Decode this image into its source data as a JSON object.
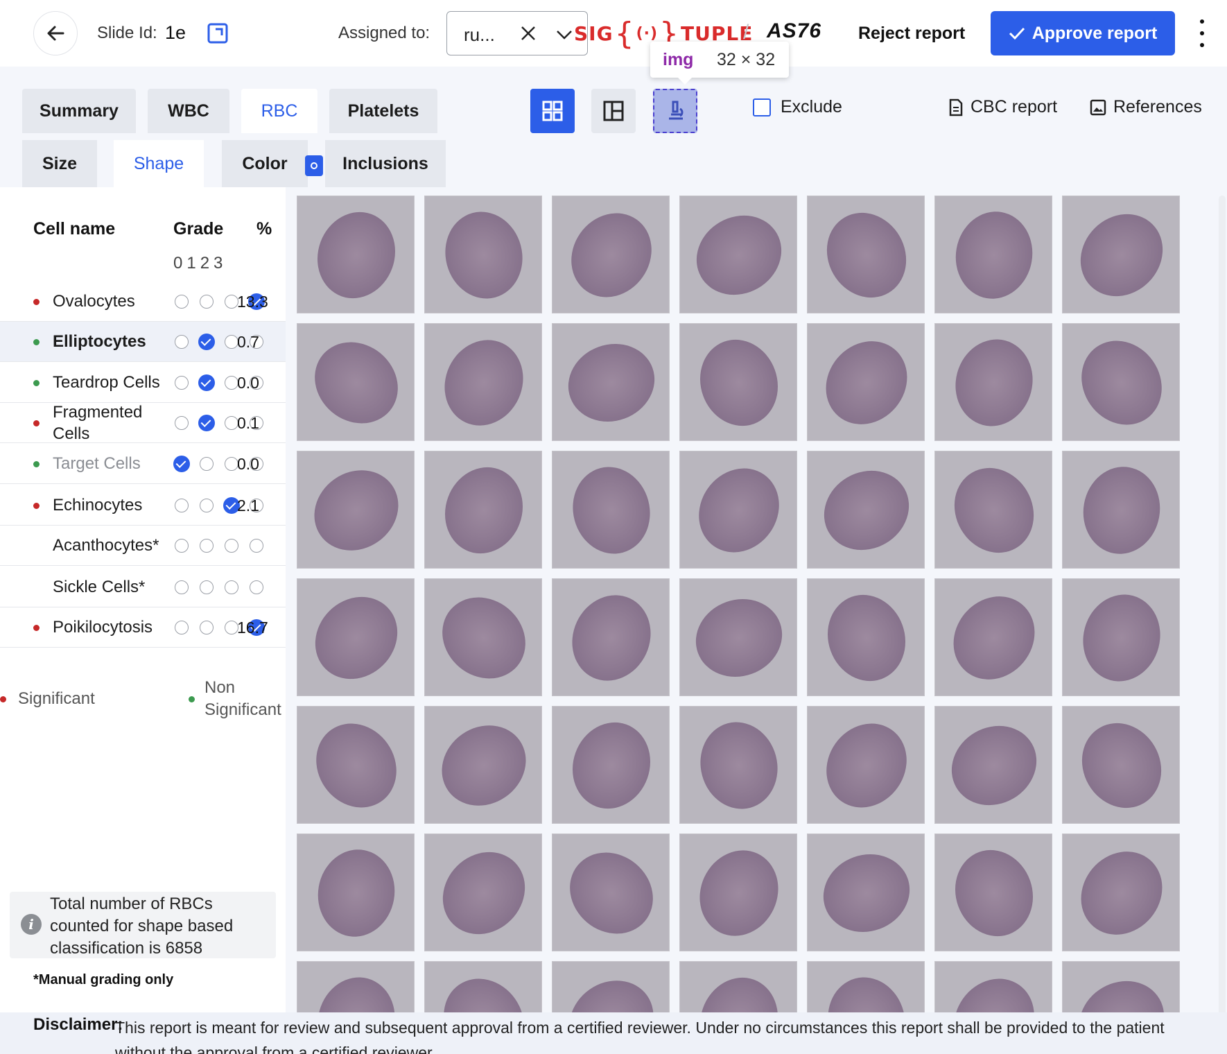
{
  "header": {
    "slide_label": "Slide Id:",
    "slide_id": "1e",
    "assigned_label": "Assigned to:",
    "assigned_value": "ru...",
    "logo_left": "SIG",
    "logo_right": "TUPLE",
    "device_id": "AS76",
    "reject_label": "Reject report",
    "approve_label": "Approve report",
    "logo_color": "#d92b2b",
    "accent": "#2c5ee8"
  },
  "tooltip": {
    "tag": "img",
    "dims": "32 × 32"
  },
  "tabs": [
    {
      "label": "Summary"
    },
    {
      "label": "WBC"
    },
    {
      "label": "RBC",
      "active": true
    },
    {
      "label": "Platelets"
    }
  ],
  "toolbar": {
    "exclude_label": "Exclude",
    "cbc_label": "CBC report",
    "references_label": "References"
  },
  "subtabs": [
    {
      "label": "Size"
    },
    {
      "label": "Shape",
      "active": true
    },
    {
      "label": "Color"
    },
    {
      "label": "Inclusions"
    }
  ],
  "table": {
    "col_name": "Cell name",
    "col_grade": "Grade",
    "col_pct": "%",
    "grade_levels": "0123",
    "rows": [
      {
        "name": "Ovalocytes",
        "significance": "significant",
        "grade": 3,
        "pct": "13.3"
      },
      {
        "name": "Elliptocytes",
        "significance": "non-significant",
        "grade": 1,
        "pct": "0.7"
      },
      {
        "name": "Teardrop Cells",
        "significance": "non-significant",
        "grade": 1,
        "pct": "0.0"
      },
      {
        "name": "Fragmented Cells",
        "significance": "significant",
        "grade": 1,
        "pct": "0.1"
      },
      {
        "name": "Target Cells",
        "significance": "non-significant",
        "grade": 0,
        "pct": "0.0"
      },
      {
        "name": "Echinocytes",
        "significance": "significant",
        "grade": 2,
        "pct": "2.1"
      },
      {
        "name": "Acanthocytes*",
        "significance": "none",
        "grade": null,
        "pct": ""
      },
      {
        "name": "Sickle Cells*",
        "significance": "none",
        "grade": null,
        "pct": ""
      },
      {
        "name": "Poikilocytosis",
        "significance": "significant",
        "grade": 3,
        "pct": "16.7"
      }
    ]
  },
  "legend": {
    "significant": "Significant",
    "non_significant": "Non Significant",
    "significant_color": "#c62828",
    "non_significant_color": "#3c9a4f"
  },
  "info": {
    "text": "Total number of RBCs counted for shape based classification is 6858"
  },
  "manual_note": "*Manual grading only",
  "disclaimer": {
    "label": "Disclaimer:",
    "text": "This report is meant for review and subsequent approval from a certified reviewer. Under no circumstances this report shall be provided to the patient without the approval from a certified reviewer."
  }
}
